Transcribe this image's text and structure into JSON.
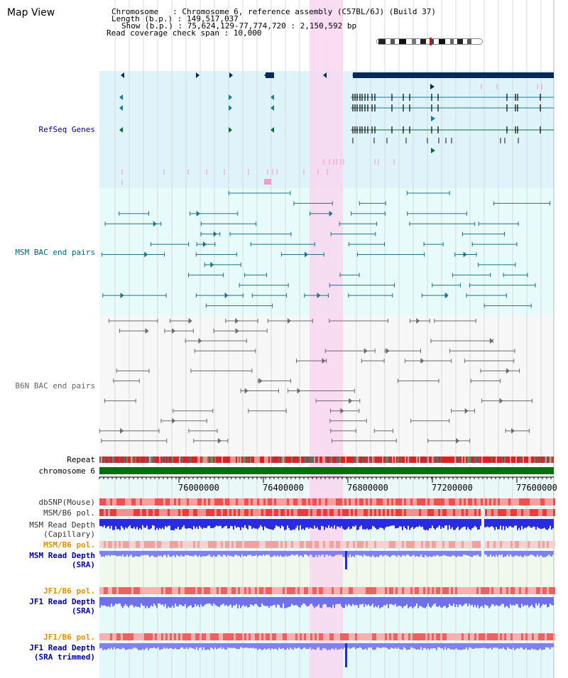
{
  "page": {
    "title": "Map View"
  },
  "info": {
    "chromosome_line": "Chromosome   : Chromosome 6, reference assembly (C57BL/6J) (Build 37)",
    "length_line": "Length (b.p.) : 149,517,037",
    "show_line": "Show (b.p.) : 75,624,129-77,774,720 : 2,150,592 bp",
    "coverage_line": "Read coverage check span : 10,000"
  },
  "tracks": {
    "refseq": "RefSeq Genes",
    "msm_bac": "MSM BAC end pairs",
    "b6n_bac": "B6N BAC end pairs",
    "repeat": "Repeat",
    "chromosome": "chromosome 6",
    "dbsnp": "dbSNP(Mouse)",
    "msm_b6_pol_1": "MSM/B6 pol.",
    "msm_depth_cap": "MSM Read Depth\n(Capillary)",
    "msm_b6_pol_2": "MSM/B6 pol.",
    "msm_depth_sra": "MSM Read Depth\n(SRA)",
    "jf1_b6_pol_1": "JF1/B6 pol.",
    "jf1_depth_sra": "JF1 Read Depth\n(SRA)",
    "jf1_b6_pol_2": "JF1/B6 pol.",
    "jf1_depth_trim": "JF1 Read Depth\n(SRA trimmed)"
  },
  "axis": {
    "ticks": [
      "76000000",
      "76400000",
      "76800000",
      "77200000",
      "77600000"
    ]
  },
  "colors": {
    "refseq_bg": "#dff3fb",
    "msm_bac_bg": "#e8fbfb",
    "b6n_bac_bg": "#f7f7f7",
    "highlight": "#f9d7f0",
    "refseq_label": "#000099",
    "msm_label": "#006680",
    "b6n_label": "#666666",
    "pol_label": "#e08f00",
    "depth_label": "#0000aa"
  }
}
